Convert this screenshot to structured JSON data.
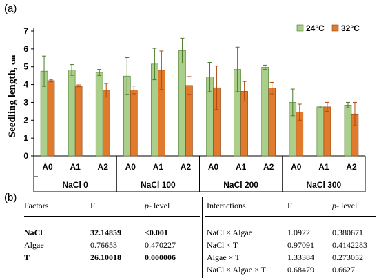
{
  "panel_a_label": "(a)",
  "panel_b_label": "(b)",
  "chart_data": {
    "type": "bar",
    "title": "",
    "ylabel": "Seedling length,",
    "ylabel_unit": "cm",
    "xlabel": "",
    "ylim": [
      0,
      7
    ],
    "yticks": [
      0,
      1,
      2,
      3,
      4,
      5,
      6,
      7
    ],
    "grid": false,
    "legend_position": "top-right",
    "groups": [
      "NaCl 0",
      "NaCl 100",
      "NaCl 200",
      "NaCl 300"
    ],
    "categories": [
      "A0",
      "A1",
      "A2"
    ],
    "series": [
      {
        "name": "24°C",
        "color": "#a9cf8a",
        "values": [
          [
            4.75,
            4.82,
            4.68
          ],
          [
            4.48,
            5.15,
            5.9
          ],
          [
            4.42,
            4.85,
            4.97
          ],
          [
            3.0,
            2.75,
            2.85
          ]
        ],
        "errors": [
          [
            0.85,
            0.3,
            0.17
          ],
          [
            1.03,
            0.88,
            0.7
          ],
          [
            0.82,
            1.25,
            0.12
          ],
          [
            0.75,
            0.05,
            0.15
          ]
        ]
      },
      {
        "name": "32°C",
        "color": "#e07a2c",
        "values": [
          [
            4.22,
            3.93,
            3.68
          ],
          [
            3.7,
            4.8,
            3.95
          ],
          [
            3.82,
            3.62,
            3.8
          ],
          [
            2.45,
            2.75,
            2.35
          ]
        ],
        "errors": [
          [
            0.07,
            0.05,
            0.38
          ],
          [
            0.22,
            1.08,
            0.5
          ],
          [
            1.22,
            0.55,
            0.32
          ],
          [
            0.45,
            0.25,
            0.65
          ]
        ]
      }
    ]
  },
  "anova_table": {
    "headers": {
      "factors": "Factors",
      "f": "F",
      "p": "p-",
      "p_suffix": " level",
      "interactions": "Interactions"
    },
    "factor_rows": [
      {
        "factor": "NaCl",
        "f": "32.14859",
        "p": "<0.001",
        "bold": true
      },
      {
        "factor": "Algae",
        "f": "0.76653",
        "p": "0.470227",
        "bold": false
      },
      {
        "factor": "T",
        "f": "26.10018",
        "p": "0.000006",
        "bold": true
      }
    ],
    "interaction_rows": [
      {
        "factor": "NaCl × Algae",
        "f": "1.0922",
        "p": "0.380671"
      },
      {
        "factor": "NaCl × T",
        "f": "0.97091",
        "p": "0.4142283"
      },
      {
        "factor": "Algae × T",
        "f": "1.33384",
        "p": "0.273052"
      },
      {
        "factor": "NaCl × Algae × T",
        "f": "0.68479",
        "p": "0.6627"
      }
    ]
  }
}
